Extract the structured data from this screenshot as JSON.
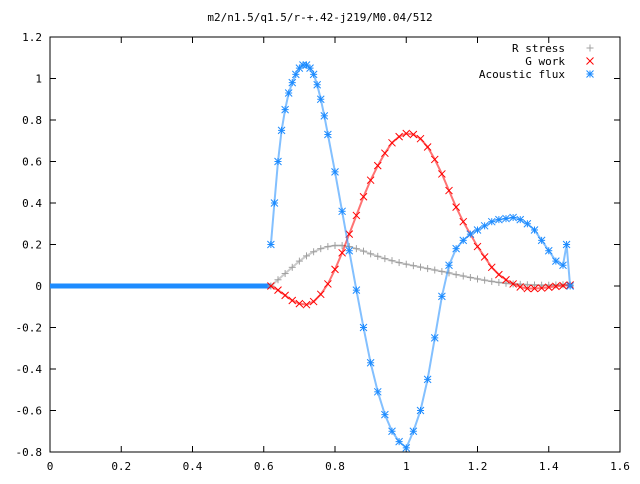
{
  "chart_data": {
    "type": "scatter",
    "title": "m2/n1.5/q1.5/r-+.42-j219/M0.04/512",
    "xlabel": "",
    "ylabel": "",
    "xlim": [
      0,
      1.6
    ],
    "ylim": [
      -0.8,
      1.2
    ],
    "xticks": [
      "0",
      "0.2",
      "0.4",
      "0.6",
      "0.8",
      "1",
      "1.2",
      "1.4",
      "1.6"
    ],
    "yticks": [
      "-0.8",
      "-0.6",
      "-0.4",
      "-0.2",
      "0",
      "0.2",
      "0.4",
      "0.6",
      "0.8",
      "1",
      "1.2"
    ],
    "grid": false,
    "legend_position": "top-right",
    "series": [
      {
        "name": "R stress",
        "marker": "plus",
        "color": "#a0a0a0",
        "x": [
          0.62,
          0.64,
          0.66,
          0.68,
          0.7,
          0.72,
          0.74,
          0.76,
          0.78,
          0.8,
          0.82,
          0.84,
          0.86,
          0.88,
          0.9,
          0.92,
          0.94,
          0.96,
          0.98,
          1.0,
          1.02,
          1.04,
          1.06,
          1.08,
          1.1,
          1.12,
          1.14,
          1.16,
          1.18,
          1.2,
          1.22,
          1.24,
          1.26,
          1.28,
          1.3,
          1.32,
          1.34,
          1.36,
          1.38,
          1.4,
          1.42,
          1.44,
          1.46
        ],
        "y": [
          0.0,
          0.03,
          0.06,
          0.09,
          0.12,
          0.145,
          0.165,
          0.18,
          0.19,
          0.195,
          0.195,
          0.19,
          0.18,
          0.168,
          0.155,
          0.143,
          0.132,
          0.122,
          0.113,
          0.105,
          0.098,
          0.091,
          0.084,
          0.077,
          0.07,
          0.063,
          0.055,
          0.048,
          0.041,
          0.034,
          0.028,
          0.022,
          0.017,
          0.013,
          0.01,
          0.008,
          0.006,
          0.005,
          0.004,
          0.004,
          0.005,
          0.006,
          0.005
        ]
      },
      {
        "name": "G work",
        "marker": "cross",
        "color": "#ff0000",
        "x": [
          0.62,
          0.64,
          0.66,
          0.68,
          0.7,
          0.72,
          0.74,
          0.76,
          0.78,
          0.8,
          0.82,
          0.84,
          0.86,
          0.88,
          0.9,
          0.92,
          0.94,
          0.96,
          0.98,
          1.0,
          1.02,
          1.04,
          1.06,
          1.08,
          1.1,
          1.12,
          1.14,
          1.16,
          1.18,
          1.2,
          1.22,
          1.24,
          1.26,
          1.28,
          1.3,
          1.32,
          1.34,
          1.36,
          1.38,
          1.4,
          1.42,
          1.44,
          1.46
        ],
        "y": [
          0.0,
          -0.02,
          -0.045,
          -0.07,
          -0.085,
          -0.09,
          -0.075,
          -0.04,
          0.01,
          0.08,
          0.16,
          0.25,
          0.34,
          0.43,
          0.51,
          0.58,
          0.64,
          0.69,
          0.72,
          0.735,
          0.73,
          0.71,
          0.67,
          0.61,
          0.54,
          0.46,
          0.38,
          0.31,
          0.25,
          0.19,
          0.14,
          0.09,
          0.055,
          0.03,
          0.01,
          -0.005,
          -0.012,
          -0.012,
          -0.01,
          -0.006,
          -0.002,
          0.002,
          0.005
        ]
      },
      {
        "name": "Acoustic flux",
        "marker": "star",
        "color": "#1e8cff",
        "x": [
          0.62,
          0.63,
          0.64,
          0.65,
          0.66,
          0.67,
          0.68,
          0.69,
          0.7,
          0.71,
          0.72,
          0.73,
          0.74,
          0.75,
          0.76,
          0.77,
          0.78,
          0.8,
          0.82,
          0.84,
          0.86,
          0.88,
          0.9,
          0.92,
          0.94,
          0.96,
          0.98,
          1.0,
          1.02,
          1.04,
          1.06,
          1.08,
          1.1,
          1.12,
          1.14,
          1.16,
          1.18,
          1.2,
          1.22,
          1.24,
          1.26,
          1.28,
          1.3,
          1.32,
          1.34,
          1.36,
          1.38,
          1.4,
          1.42,
          1.44,
          1.45,
          1.46
        ],
        "y": [
          0.2,
          0.4,
          0.6,
          0.75,
          0.85,
          0.93,
          0.98,
          1.02,
          1.05,
          1.065,
          1.065,
          1.05,
          1.02,
          0.97,
          0.9,
          0.82,
          0.73,
          0.55,
          0.36,
          0.17,
          -0.02,
          -0.2,
          -0.37,
          -0.51,
          -0.62,
          -0.7,
          -0.75,
          -0.78,
          -0.7,
          -0.6,
          -0.45,
          -0.25,
          -0.05,
          0.1,
          0.18,
          0.22,
          0.25,
          0.27,
          0.29,
          0.31,
          0.32,
          0.325,
          0.33,
          0.32,
          0.3,
          0.27,
          0.22,
          0.17,
          0.12,
          0.1,
          0.2,
          0.0
        ]
      }
    ]
  }
}
